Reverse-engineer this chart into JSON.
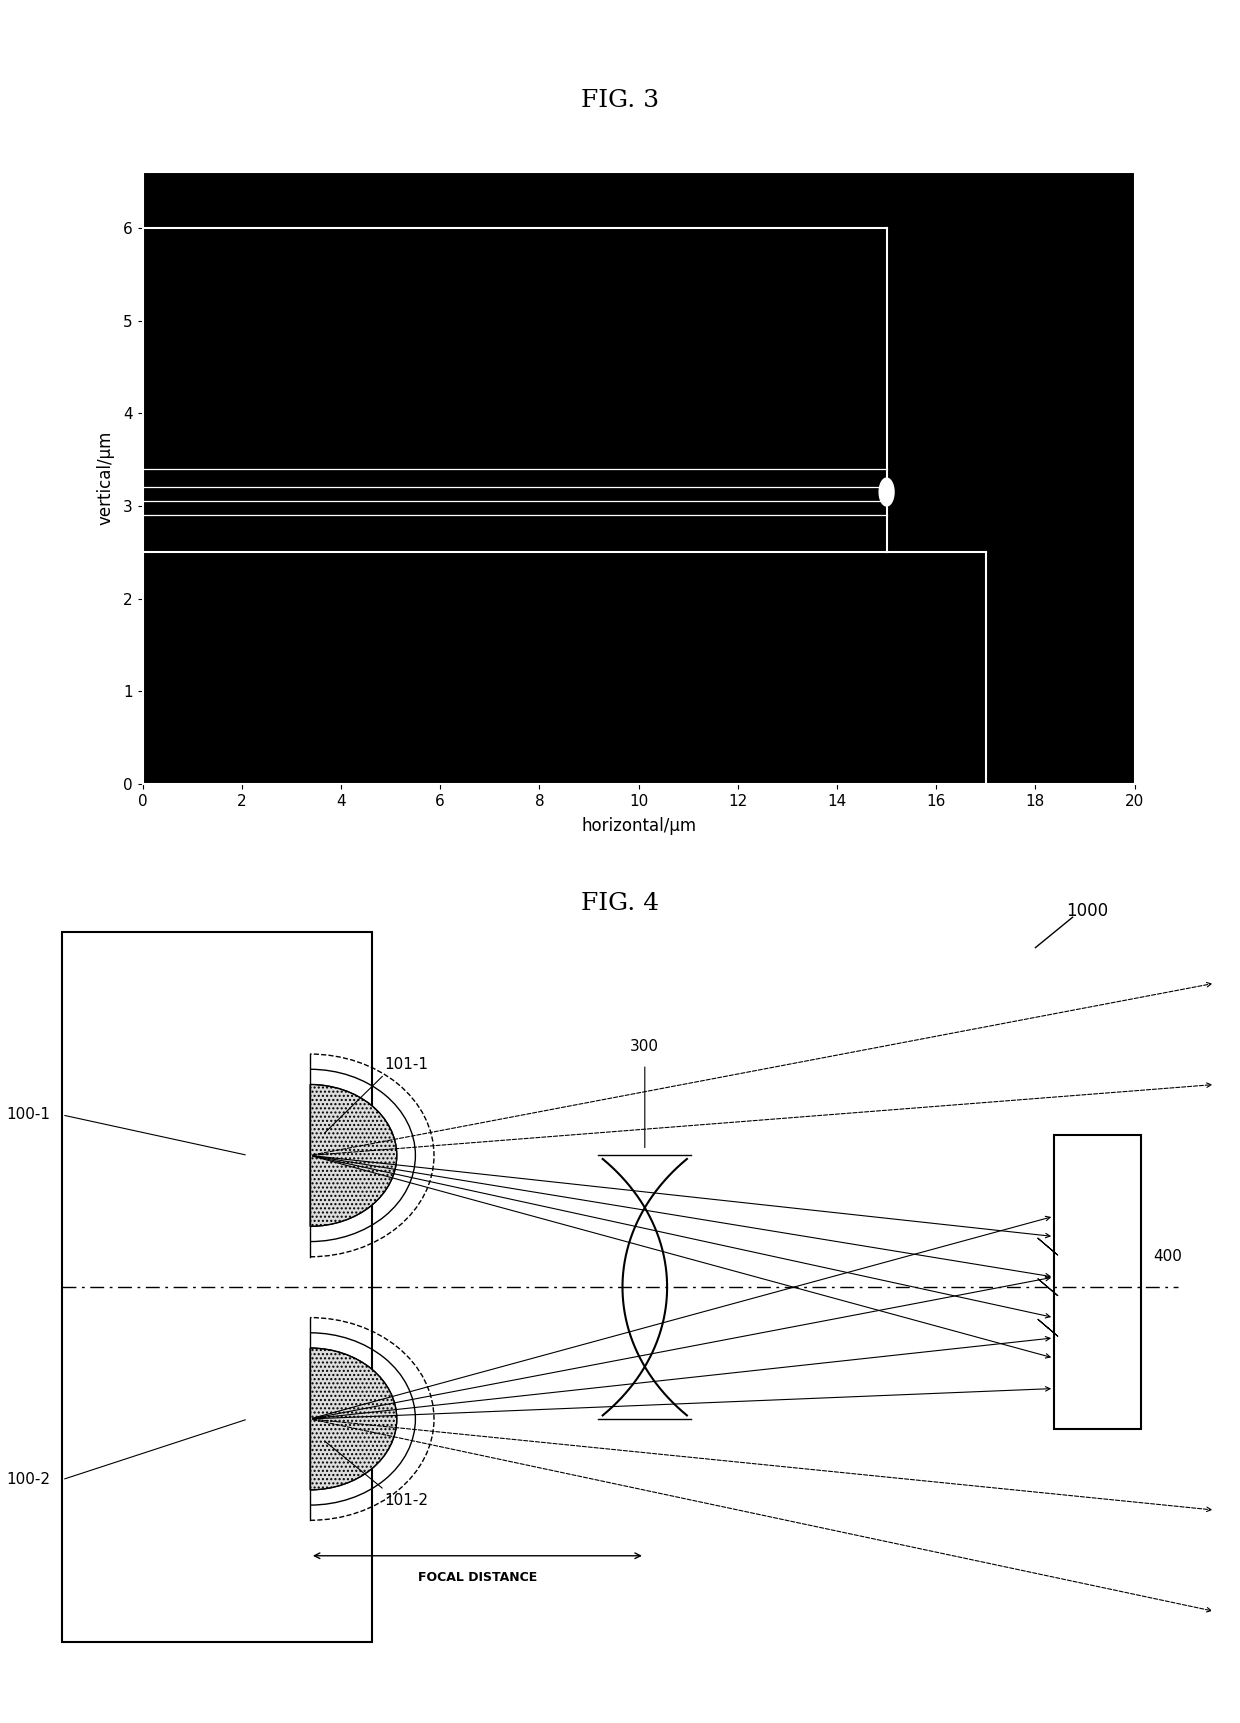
{
  "fig3_title": "FIG. 3",
  "fig4_title": "FIG. 4",
  "fig3_bg": "#000000",
  "fig3_xlim": [
    0,
    20
  ],
  "fig3_ylim": [
    0,
    6.6
  ],
  "fig3_xlabel": "horizontal/μm",
  "fig3_ylabel": "vertical/μm",
  "fig3_xticks": [
    0,
    2,
    4,
    6,
    8,
    10,
    12,
    14,
    16,
    18,
    20
  ],
  "fig3_yticks": [
    0,
    1,
    2,
    3,
    4,
    5,
    6
  ],
  "fig4_label_1000": "1000",
  "fig4_label_300": "300",
  "fig4_label_400": "400",
  "fig4_label_100_1": "100-1",
  "fig4_label_100_2": "100-2",
  "fig4_label_101_1": "101-1",
  "fig4_label_101_2": "101-2",
  "fig4_label_focal": "FOCAL DISTANCE"
}
